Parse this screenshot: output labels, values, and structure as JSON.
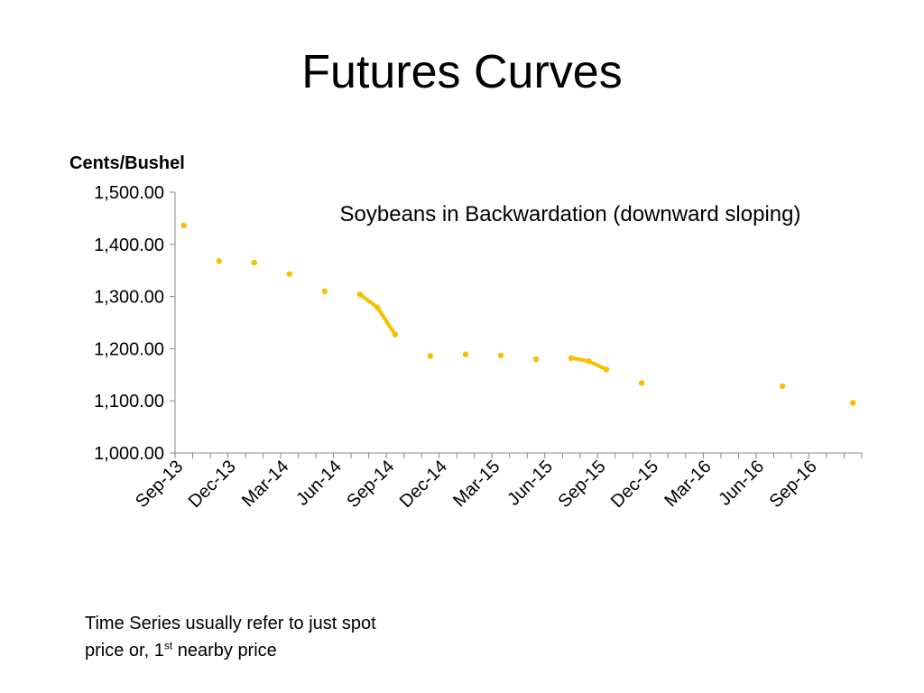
{
  "slide": {
    "title": "Futures Curves",
    "note_line1": "Time Series usually refer to just spot",
    "note_line2_prefix": "price or, 1",
    "note_line2_sup": "st",
    "note_line2_suffix": " nearby price"
  },
  "chart_data": {
    "type": "line",
    "title": "Soybeans in Backwardation (downward sloping)",
    "ylabel": "Cents/Bushel",
    "xlabel": "",
    "ylim": [
      1000,
      1500
    ],
    "y_ticks": [
      "1,000.00",
      "1,100.00",
      "1,200.00",
      "1,300.00",
      "1,400.00",
      "1,500.00"
    ],
    "x_tick_labels": [
      "Sep-13",
      "Dec-13",
      "Mar-14",
      "Jun-14",
      "Sep-14",
      "Dec-14",
      "Mar-15",
      "Jun-15",
      "Sep-15",
      "Dec-15",
      "Mar-16",
      "Jun-16",
      "Sep-16"
    ],
    "line_color": "#F5C000",
    "grid": false,
    "series": [
      {
        "x": [
          "Sep-13",
          "Oct-13",
          "Nov-13",
          "Dec-13",
          "Jan-14",
          "Feb-14",
          "Mar-14",
          "Apr-14",
          "May-14",
          "Jun-14",
          "Jul-14",
          "Aug-14",
          "Sep-14",
          "Oct-14",
          "Nov-14",
          "Dec-14",
          "Jan-15",
          "Feb-15",
          "Mar-15",
          "Apr-15",
          "May-15",
          "Jun-15",
          "Jul-15",
          "Aug-15",
          "Sep-15",
          "Oct-15",
          "Nov-15",
          "Dec-15",
          "Jan-16",
          "Feb-16",
          "Mar-16",
          "Apr-16",
          "May-16",
          "Jun-16",
          "Jul-16",
          "Aug-16",
          "Sep-16",
          "Oct-16",
          "Nov-16"
        ],
        "values": [
          1436,
          null,
          1368,
          null,
          1365,
          null,
          1343,
          null,
          1310,
          null,
          1304,
          1279,
          1227,
          null,
          1186,
          null,
          1189,
          null,
          1187,
          null,
          1180,
          null,
          1182,
          1176,
          1160,
          null,
          1134,
          null,
          null,
          null,
          null,
          null,
          null,
          null,
          1128,
          null,
          null,
          null,
          1096
        ]
      }
    ]
  }
}
